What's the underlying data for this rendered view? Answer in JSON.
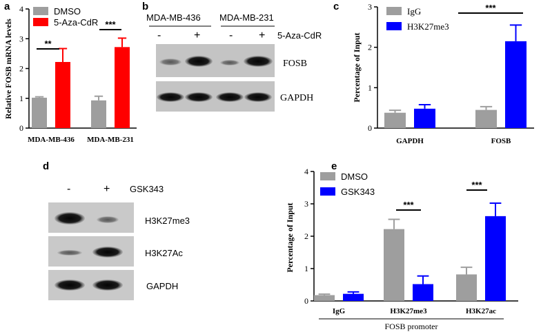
{
  "panels": {
    "a": "a",
    "b": "b",
    "c": "c",
    "d": "d",
    "e": "e"
  },
  "chart_data": [
    {
      "id": "a",
      "type": "bar",
      "categories": [
        "MDA-MB-436",
        "MDA-MB-231"
      ],
      "series": [
        {
          "name": "DMSO",
          "color": "#9e9e9e",
          "values": [
            1.02,
            0.93
          ],
          "errors": [
            0.03,
            0.14
          ]
        },
        {
          "name": "5-Aza-CdR",
          "color": "#ff0000",
          "values": [
            2.22,
            2.72
          ],
          "errors": [
            0.45,
            0.3
          ]
        }
      ],
      "ylabel": "Relative FOSB mRNA levels",
      "ylim": [
        0,
        4
      ],
      "yticks": [
        "0",
        "1",
        "2",
        "3",
        "4"
      ],
      "significance": [
        "**",
        "***"
      ],
      "legend": "top-left"
    },
    {
      "id": "c",
      "type": "bar",
      "categories": [
        "GAPDH",
        "FOSB"
      ],
      "series": [
        {
          "name": "IgG",
          "color": "#9e9e9e",
          "values": [
            0.38,
            0.45
          ],
          "errors": [
            0.06,
            0.08
          ]
        },
        {
          "name": "H3K27me3",
          "color": "#0000ff",
          "values": [
            0.48,
            2.15
          ],
          "errors": [
            0.1,
            0.4
          ]
        }
      ],
      "ylabel": "Percentage of Input",
      "ylim": [
        0,
        3
      ],
      "yticks": [
        "0",
        "1",
        "2",
        "3"
      ],
      "significance": [
        "***"
      ],
      "legend": "top-left"
    },
    {
      "id": "e",
      "type": "bar",
      "categories": [
        "IgG",
        "H3K27me3",
        "H3K27ac"
      ],
      "series": [
        {
          "name": "DMSO",
          "color": "#9e9e9e",
          "values": [
            0.18,
            2.22,
            0.82
          ],
          "errors": [
            0.03,
            0.3,
            0.22
          ]
        },
        {
          "name": "GSK343",
          "color": "#0000ff",
          "values": [
            0.22,
            0.52,
            2.62
          ],
          "errors": [
            0.06,
            0.25,
            0.4
          ]
        }
      ],
      "ylabel": "Percentage of Input",
      "ylim": [
        0,
        4
      ],
      "yticks": [
        "0",
        "1",
        "2",
        "3",
        "4"
      ],
      "significance": [
        "***",
        "***"
      ],
      "group_label": "FOSB promoter",
      "legend": "top-left"
    }
  ],
  "blot_b": {
    "cell_lines": [
      "MDA-MB-436",
      "MDA-MB-231"
    ],
    "signs": [
      "-",
      "+",
      "-",
      "+"
    ],
    "treatment": "5-Aza-CdR",
    "bands": [
      "FOSB",
      "GAPDH"
    ]
  },
  "blot_d": {
    "signs": [
      "-",
      "+"
    ],
    "treatment": "GSK343",
    "bands": [
      "H3K27me3",
      "H3K27Ac",
      "GAPDH"
    ]
  }
}
